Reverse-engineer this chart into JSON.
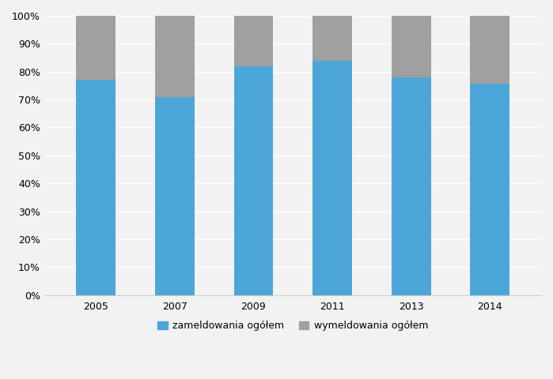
{
  "categories": [
    "2005",
    "2007",
    "2009",
    "2011",
    "2013",
    "2014"
  ],
  "zameldowania": [
    0.77,
    0.71,
    0.82,
    0.84,
    0.78,
    0.758
  ],
  "wymeldowania": [
    0.23,
    0.29,
    0.18,
    0.16,
    0.22,
    0.242
  ],
  "color_zam": "#4da6d8",
  "color_wym": "#a0a0a0",
  "legend_zam": "zameldowania ogółem",
  "legend_wym": "wymeldowania ogółem",
  "ylim": [
    0,
    1.0
  ],
  "yticks": [
    0.0,
    0.1,
    0.2,
    0.3,
    0.4,
    0.5,
    0.6,
    0.7,
    0.8,
    0.9,
    1.0
  ],
  "ytick_labels": [
    "0%",
    "10%",
    "20%",
    "30%",
    "40%",
    "50%",
    "60%",
    "70%",
    "80%",
    "90%",
    "100%"
  ],
  "background_color": "#f2f2f2",
  "bar_width": 0.5,
  "grid_color": "#ffffff",
  "tick_fontsize": 9,
  "legend_fontsize": 9
}
